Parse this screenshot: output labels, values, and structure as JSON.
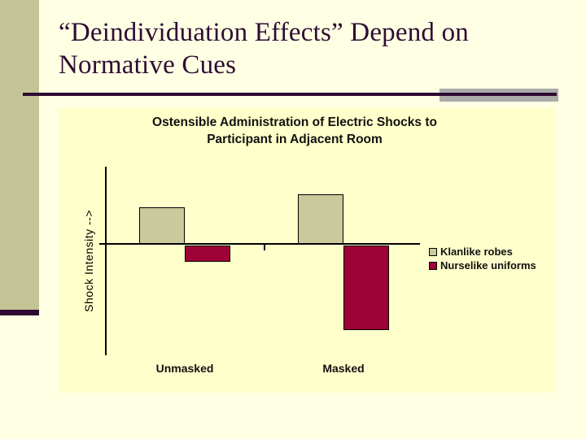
{
  "slide": {
    "title_line1": "“Deindividuation Effects” Depend on",
    "title_line2": "Normative Cues"
  },
  "colors": {
    "slide_bg": "#FFFFE4",
    "chart_bg": "#FFFFCB",
    "left_band": "#C4C497",
    "accent_gray": "#ABABAB",
    "accent_purple": "#2E0A33",
    "title_text": "#2F0D33",
    "klanlike_bar": "#C9C99B",
    "nurselike_bar": "#9D0236"
  },
  "chart_data": {
    "type": "bar",
    "title": "Ostensible Administration of Electric Shocks to Participant in Adjacent Room",
    "title_lines": [
      "Ostensible Administration of Electric Shocks to",
      "Participant in Adjacent Room"
    ],
    "ylabel": "Shock Intensity -->",
    "xlabel": "",
    "categories": [
      "Unmasked",
      "Masked"
    ],
    "series": [
      {
        "name": "Klanlike robes",
        "color": "#C9C99B",
        "values": [
          45,
          61
        ]
      },
      {
        "name": "Nurselike uniforms",
        "color": "#9D0236",
        "values": [
          -20,
          -104
        ]
      }
    ],
    "value_axis": {
      "tick_labels_shown": false,
      "units": "relative shock-intensity change (axis unlabeled; values estimated from bar heights in px)"
    },
    "baseline": 0,
    "grid": false,
    "legend_position": "right"
  }
}
